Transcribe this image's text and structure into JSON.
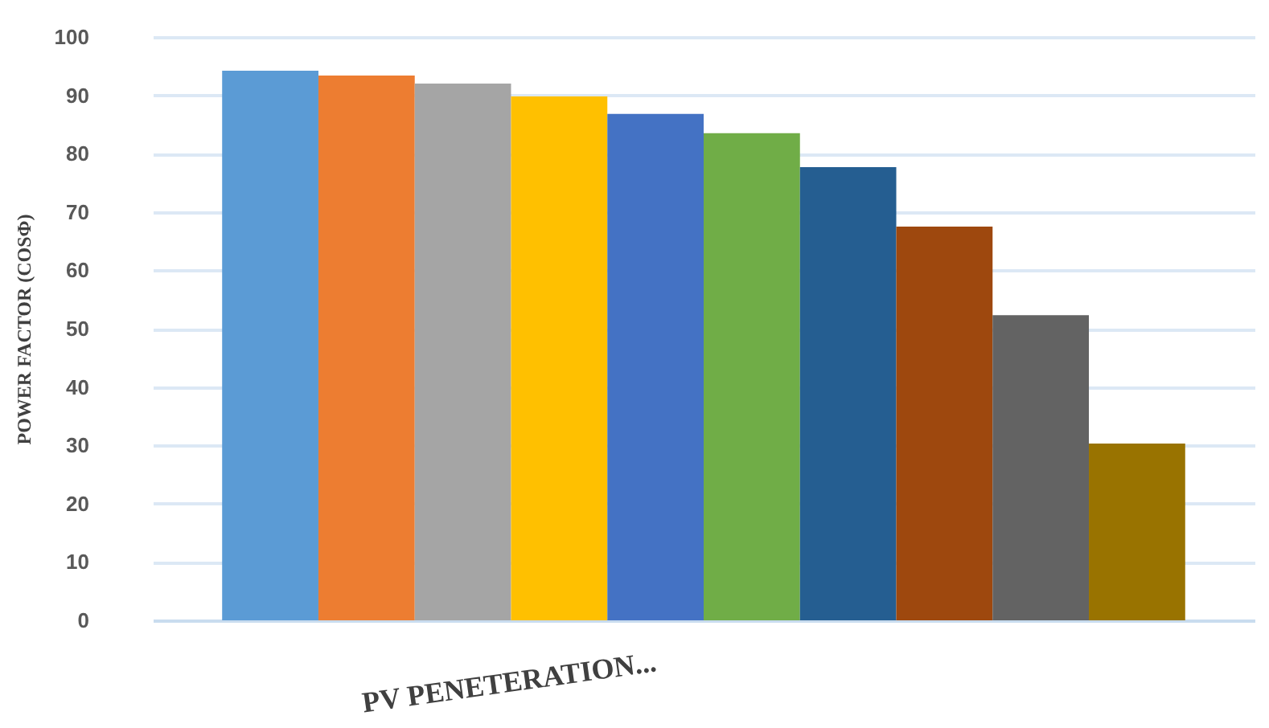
{
  "chart_data": {
    "type": "bar",
    "xlabel": "PV PENETERATION...",
    "ylabel": "POWER FACTOR  (COSΦ)",
    "categories": [
      null,
      null,
      null,
      null,
      null,
      null,
      null,
      null,
      null,
      null
    ],
    "values": [
      94.2,
      93.4,
      92,
      89.8,
      86.8,
      83.5,
      77.7,
      67.5,
      52.3,
      30.3
    ],
    "colors": [
      "#5b9bd5",
      "#ed7d31",
      "#a5a5a5",
      "#ffc000",
      "#4472c4",
      "#70ad47",
      "#255e91",
      "#9e480e",
      "#636363",
      "#997300"
    ],
    "ylim": [
      0,
      100
    ],
    "yticks": [
      0,
      10,
      20,
      30,
      40,
      50,
      60,
      70,
      80,
      90,
      100
    ],
    "grid": "y"
  }
}
